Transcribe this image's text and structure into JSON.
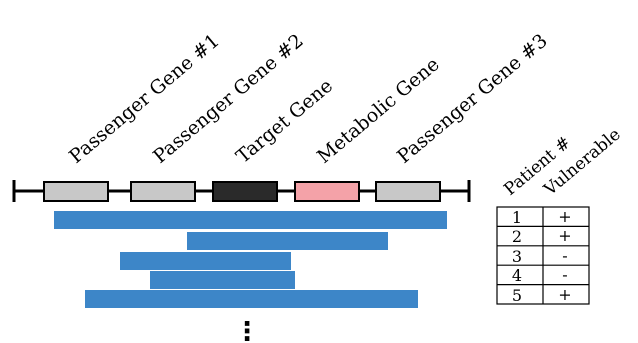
{
  "genes": [
    {
      "label": "Passenger Gene #1",
      "fill": "#c8c8c8"
    },
    {
      "label": "Passenger Gene #2",
      "fill": "#c8c8c8"
    },
    {
      "label": "Target Gene",
      "fill": "#2a2a2a"
    },
    {
      "label": "Metabolic Gene",
      "fill": "#f4a2a8"
    },
    {
      "label": "Passenger Gene #3",
      "fill": "#c8c8c8"
    }
  ],
  "segment_color": "#3d86c8",
  "patients": [
    {
      "id": "1",
      "vulnerable": "+"
    },
    {
      "id": "2",
      "vulnerable": "+"
    },
    {
      "id": "3",
      "vulnerable": "-"
    },
    {
      "id": "4",
      "vulnerable": "-"
    },
    {
      "id": "5",
      "vulnerable": "+"
    }
  ],
  "table": {
    "header_patient": "Patient #",
    "header_vulnerable": "Vulnerable"
  },
  "continuation": "⋮"
}
